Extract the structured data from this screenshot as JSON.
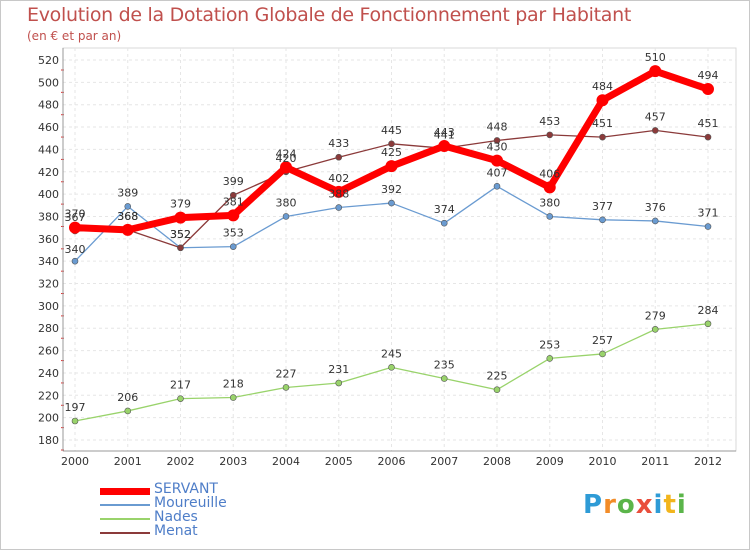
{
  "chart_data": {
    "type": "line",
    "title": "Evolution de la Dotation Globale de Fonctionnement par Habitant",
    "subtitle": "(en € et par an)",
    "x": [
      "2000",
      "2001",
      "2002",
      "2003",
      "2004",
      "2005",
      "2006",
      "2007",
      "2008",
      "2009",
      "2010",
      "2011",
      "2012"
    ],
    "ylim": [
      180,
      520
    ],
    "yticks": [
      180,
      200,
      220,
      240,
      260,
      280,
      300,
      320,
      340,
      360,
      380,
      400,
      420,
      440,
      460,
      480,
      500,
      520
    ],
    "grid": true,
    "legend_position": "bottom-left",
    "series": [
      {
        "name": "SERVANT",
        "color": "#ff0000",
        "values": [
          370,
          368,
          379,
          381,
          424,
          402,
          425,
          443,
          430,
          406,
          484,
          510,
          494
        ]
      },
      {
        "name": "Moureuille",
        "color": "#6a9bd1",
        "values": [
          340,
          389,
          352,
          353,
          380,
          388,
          392,
          374,
          407,
          380,
          377,
          376,
          371
        ]
      },
      {
        "name": "Nades",
        "color": "#99d36b",
        "values": [
          197,
          206,
          217,
          218,
          227,
          231,
          245,
          235,
          225,
          253,
          257,
          279,
          284
        ]
      },
      {
        "name": "Menat",
        "color": "#8b3a3a",
        "values": [
          367,
          368,
          352,
          399,
          420,
          433,
          445,
          441,
          448,
          453,
          451,
          457,
          451
        ]
      }
    ]
  },
  "logo": {
    "text": "Proxiti"
  }
}
